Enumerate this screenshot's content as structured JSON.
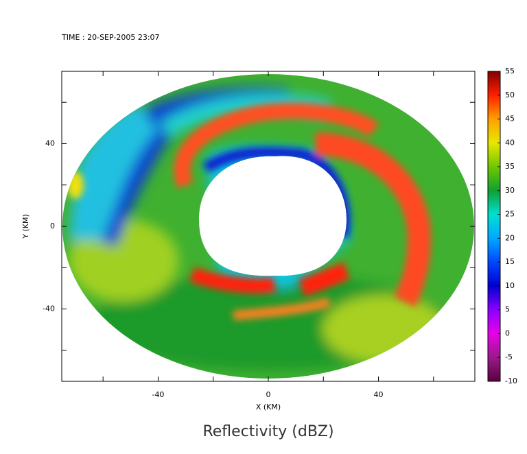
{
  "chart_data": {
    "type": "radar_field",
    "time_label": "TIME : 20-SEP-2005 23:07",
    "title": "Reflectivity (dBZ)",
    "x_label": "X (KM)",
    "y_label": "Y (KM)",
    "xlim": [
      -75,
      75
    ],
    "ylim": [
      -75,
      75
    ],
    "xticks": [
      -40,
      0,
      40
    ],
    "yticks": [
      -40,
      0,
      40
    ],
    "xticks_minor": [
      -60,
      -20,
      20,
      60
    ],
    "yticks_minor": [
      -60,
      -20,
      20,
      60
    ],
    "colorbar": {
      "lim": [
        -10,
        55
      ],
      "ticks": [
        -10,
        -5,
        0,
        5,
        10,
        15,
        20,
        25,
        30,
        35,
        40,
        45,
        50,
        55
      ],
      "colors": [
        "#5a0040",
        "#9a1a8a",
        "#e800e8",
        "#8a00ff",
        "#0000d0",
        "#0048ff",
        "#00a8ff",
        "#00e0d0",
        "#10a030",
        "#70c800",
        "#e8e800",
        "#ffa000",
        "#ff2000",
        "#800000"
      ]
    }
  }
}
